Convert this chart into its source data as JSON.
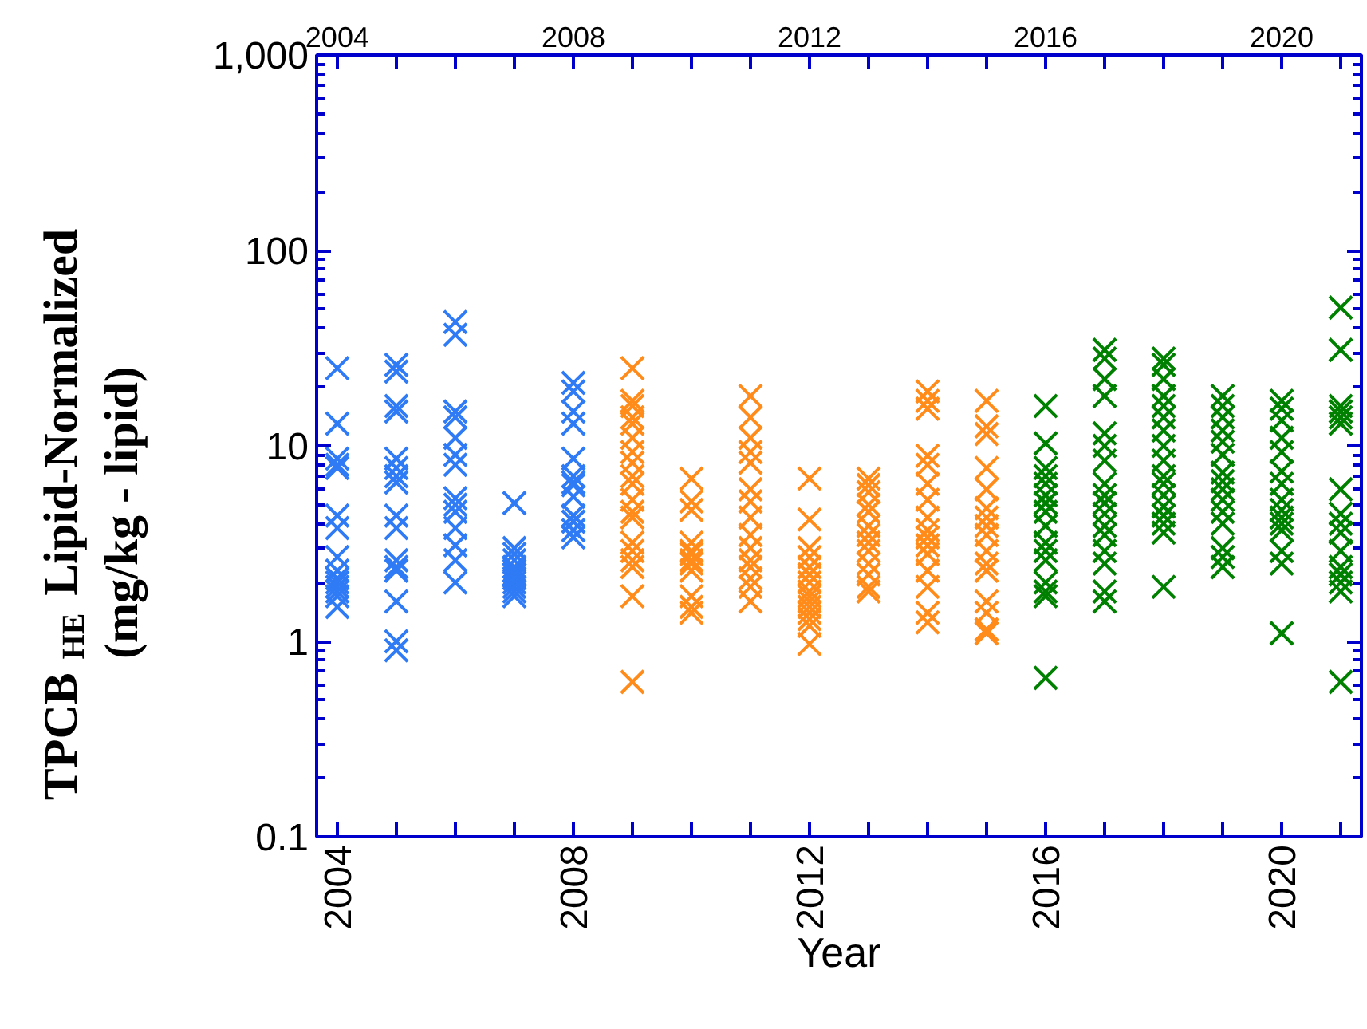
{
  "chart_data": {
    "type": "scatter",
    "xlabel": "Year",
    "ylabel": "TPCB$_{HE}$ Lipid-Normalized\n(mg/kg - lipid)",
    "log": "y",
    "grid": false,
    "marker": "cross",
    "xlim": [
      2003.65,
      2021.35
    ],
    "ylim": [
      0.1,
      1000
    ],
    "xticks": [
      2004,
      {
        "value": 2005,
        "label": null
      },
      {
        "value": 2006,
        "label": null
      },
      {
        "value": 2007,
        "label": null
      },
      2008,
      {
        "value": 2009,
        "label": null
      },
      {
        "value": 2010,
        "label": null
      },
      {
        "value": 2011,
        "label": null
      },
      2012,
      {
        "value": 2013,
        "label": null
      },
      {
        "value": 2014,
        "label": null
      },
      {
        "value": 2015,
        "label": null
      },
      2016,
      {
        "value": 2017,
        "label": null
      },
      {
        "value": 2018,
        "label": null
      },
      {
        "value": 2019,
        "label": null
      },
      2020,
      {
        "value": 2021,
        "label": null
      }
    ],
    "x2lim": [
      2003.65,
      2021.35
    ],
    "x2ticks": [
      2004,
      {
        "value": 2005,
        "label": null
      },
      {
        "value": 2006,
        "label": null
      },
      {
        "value": 2007,
        "label": null
      },
      2008,
      {
        "value": 2009,
        "label": null
      },
      {
        "value": 2010,
        "label": null
      },
      {
        "value": 2011,
        "label": null
      },
      2012,
      {
        "value": 2013,
        "label": null
      },
      {
        "value": 2014,
        "label": null
      },
      {
        "value": 2015,
        "label": null
      },
      2016,
      {
        "value": 2017,
        "label": null
      },
      {
        "value": 2018,
        "label": null
      },
      {
        "value": 2019,
        "label": null
      },
      2020,
      {
        "value": 2021,
        "label": null
      }
    ],
    "yticks": [
      0.1,
      1,
      10,
      100,
      {
        "value": 1000,
        "label": "1,000"
      }
    ],
    "series": [
      {
        "color": "#2f7bf5",
        "x": [
          2004,
          2004,
          2004,
          2004,
          2004,
          2004,
          2004,
          2004,
          2004,
          2004,
          2004,
          2004,
          2004,
          2004,
          2004,
          2005,
          2005,
          2005,
          2005,
          2005,
          2005,
          2005,
          2005,
          2005,
          2005,
          2005,
          2005,
          2005,
          2005,
          2005,
          2005,
          2006,
          2006,
          2006,
          2006,
          2006,
          2006,
          2006,
          2006,
          2006,
          2006,
          2006,
          2006,
          2006,
          2006,
          2007,
          2007,
          2007,
          2007,
          2007,
          2007,
          2007,
          2007,
          2007,
          2007,
          2007,
          2007,
          2008,
          2008,
          2008,
          2008,
          2008,
          2008,
          2008,
          2008,
          2008,
          2008,
          2008,
          2008,
          2008
        ],
        "values": [
          25,
          13,
          8.6,
          8,
          7.7,
          4.4,
          3.8,
          2.7,
          2.3,
          2.1,
          2.0,
          1.9,
          1.8,
          1.7,
          1.5,
          26,
          24,
          16,
          15,
          8.6,
          7.7,
          7,
          6.5,
          4.4,
          3.8,
          2.6,
          2.4,
          2.3,
          1.6,
          1.0,
          0.9,
          43,
          37,
          15,
          14,
          11,
          9,
          8,
          5.4,
          5,
          4.6,
          3.8,
          3.1,
          2.6,
          2.0,
          5.1,
          3.0,
          2.8,
          2.6,
          2.4,
          2.3,
          2.2,
          2.1,
          2.0,
          1.9,
          1.8,
          1.7,
          21,
          19,
          15,
          13,
          8.6,
          7,
          6.5,
          6.3,
          5.5,
          4.4,
          4.1,
          3.7,
          3.4
        ]
      },
      {
        "color": "#ff8c1a",
        "x": [
          2009,
          2009,
          2009,
          2009,
          2009,
          2009,
          2009,
          2009,
          2009,
          2009,
          2009,
          2009,
          2009,
          2009,
          2009,
          2009,
          2009,
          2009,
          2009,
          2010,
          2010,
          2010,
          2010,
          2010,
          2010,
          2010,
          2010,
          2010,
          2010,
          2010,
          2010,
          2011,
          2011,
          2011,
          2011,
          2011,
          2011,
          2011,
          2011,
          2011,
          2011,
          2011,
          2011,
          2011,
          2011,
          2011,
          2012,
          2012,
          2012,
          2012,
          2012,
          2012,
          2012,
          2012,
          2012,
          2012,
          2012,
          2012,
          2012,
          2012,
          2012,
          2013,
          2013,
          2013,
          2013,
          2013,
          2013,
          2013,
          2013,
          2013,
          2013,
          2013,
          2013,
          2013,
          2014,
          2014,
          2014,
          2014,
          2014,
          2014,
          2014,
          2014,
          2014,
          2014,
          2014,
          2014,
          2014,
          2014,
          2014,
          2014,
          2015,
          2015,
          2015,
          2015,
          2015,
          2015,
          2015,
          2015,
          2015,
          2015,
          2015,
          2015,
          2015,
          2015,
          2015,
          2015
        ],
        "values": [
          25,
          17,
          16,
          14,
          13,
          11,
          9.3,
          8.2,
          7,
          6.4,
          5.3,
          4.6,
          4.3,
          3.2,
          2.9,
          2.6,
          2.4,
          1.7,
          0.62,
          6.8,
          5.2,
          4.7,
          3.2,
          2.9,
          2.8,
          2.6,
          2.5,
          2.3,
          1.7,
          1.5,
          1.4,
          18,
          14,
          11,
          9.3,
          8.2,
          6,
          5.2,
          4.3,
          3.5,
          3,
          2.6,
          2.4,
          2.1,
          1.9,
          1.6,
          6.8,
          4.2,
          3,
          2.7,
          2.4,
          2.2,
          2,
          1.8,
          1.7,
          1.6,
          1.5,
          1.4,
          1.3,
          1.2,
          0.97,
          6.8,
          6.3,
          5.8,
          5,
          4.6,
          3.9,
          3.5,
          3.2,
          2.9,
          2.5,
          2.2,
          1.9,
          1.8,
          19,
          17,
          15.5,
          8.9,
          8,
          6.4,
          5.3,
          4.3,
          3.7,
          3.4,
          3.1,
          2.8,
          2.3,
          1.9,
          1.4,
          1.25,
          17,
          12.6,
          11.5,
          7.7,
          6,
          4.8,
          4.3,
          3.9,
          3.5,
          2.9,
          2.5,
          2.3,
          1.6,
          1.4,
          1.15,
          1.1
        ]
      },
      {
        "color": "#008000",
        "x": [
          2016,
          2016,
          2016,
          2016,
          2016,
          2016,
          2016,
          2016,
          2016,
          2016,
          2016,
          2016,
          2016,
          2016,
          2016,
          2016,
          2017,
          2017,
          2017,
          2017,
          2017,
          2017,
          2017,
          2017,
          2017,
          2017,
          2017,
          2017,
          2017,
          2017,
          2017,
          2017,
          2017,
          2018,
          2018,
          2018,
          2018,
          2018,
          2018,
          2018,
          2018,
          2018,
          2018,
          2018,
          2018,
          2018,
          2018,
          2018,
          2018,
          2018,
          2019,
          2019,
          2019,
          2019,
          2019,
          2019,
          2019,
          2019,
          2019,
          2019,
          2019,
          2019,
          2019,
          2019,
          2019,
          2020,
          2020,
          2020,
          2020,
          2020,
          2020,
          2020,
          2020,
          2020,
          2020,
          2020,
          2020,
          2020,
          2020,
          2020,
          2021,
          2021,
          2021,
          2021,
          2021,
          2021,
          2021,
          2021,
          2021,
          2021,
          2021,
          2021,
          2021,
          2021,
          2021,
          2021
        ],
        "values": [
          16,
          10.3,
          7.7,
          7,
          6.4,
          5.6,
          5.1,
          4.6,
          3.9,
          3.2,
          2.9,
          2.6,
          2,
          1.8,
          1.7,
          0.65,
          31,
          28,
          22,
          18,
          11.6,
          10,
          8.4,
          6.4,
          5.6,
          5.1,
          4.5,
          3.9,
          3.5,
          2.9,
          2.5,
          1.8,
          1.6,
          28,
          26,
          22,
          18,
          16,
          14,
          12,
          10,
          8.4,
          7,
          6.4,
          5.6,
          4.9,
          4.4,
          4,
          3.6,
          1.9,
          18,
          16,
          14,
          12,
          10.5,
          9,
          7.3,
          6.6,
          6,
          5.3,
          4.6,
          4,
          3,
          2.7,
          2.4,
          17,
          15.5,
          13.5,
          11,
          9.3,
          7.4,
          6.4,
          5.3,
          4.7,
          4.3,
          4,
          3.7,
          2.9,
          2.5,
          1.1,
          51,
          31,
          16,
          15,
          14,
          13,
          6,
          4.5,
          4,
          3.6,
          2.9,
          2.4,
          2.2,
          2,
          1.8,
          0.62
        ]
      }
    ]
  }
}
